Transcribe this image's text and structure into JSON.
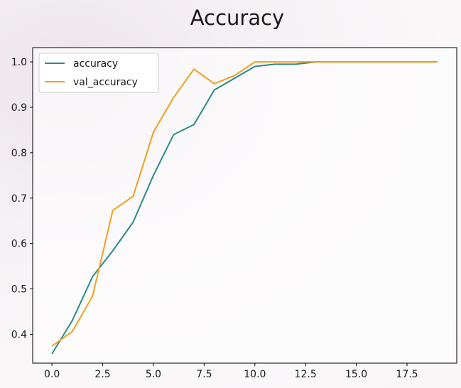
{
  "chart_data": {
    "type": "line",
    "title": "Accuracy",
    "xlabel": "",
    "ylabel": "",
    "xlim": [
      -0.95,
      19.95
    ],
    "ylim": [
      0.3365,
      1.0315
    ],
    "x_ticks": [
      0.0,
      2.5,
      5.0,
      7.5,
      10.0,
      12.5,
      15.0,
      17.5
    ],
    "x_tick_labels": [
      "0.0",
      "2.5",
      "5.0",
      "7.5",
      "10.0",
      "12.5",
      "15.0",
      "17.5"
    ],
    "y_ticks": [
      0.4,
      0.5,
      0.6,
      0.7,
      0.8,
      0.9,
      1.0
    ],
    "y_tick_labels": [
      "0.4",
      "0.5",
      "0.6",
      "0.7",
      "0.8",
      "0.9",
      "1.0"
    ],
    "grid": false,
    "legend": "top-left",
    "x": [
      0,
      1,
      2,
      3,
      4,
      5,
      6,
      7,
      8,
      9,
      10,
      11,
      12,
      13,
      14,
      15,
      16,
      17,
      18,
      19
    ],
    "series": [
      {
        "name": "accuracy",
        "color": "#2a8a8a",
        "values": [
          0.357,
          0.43,
          0.527,
          0.584,
          0.647,
          0.75,
          0.84,
          0.862,
          0.938,
          0.964,
          0.99,
          0.995,
          0.995,
          1.0,
          1.0,
          1.0,
          1.0,
          1.0,
          1.0,
          1.0
        ]
      },
      {
        "name": "val_accuracy",
        "color": "#f0a020",
        "values": [
          0.374,
          0.406,
          0.484,
          0.673,
          0.704,
          0.845,
          0.922,
          0.984,
          0.952,
          0.97,
          1.0,
          1.0,
          1.0,
          1.0,
          1.0,
          1.0,
          1.0,
          1.0,
          1.0,
          1.0
        ]
      }
    ]
  }
}
